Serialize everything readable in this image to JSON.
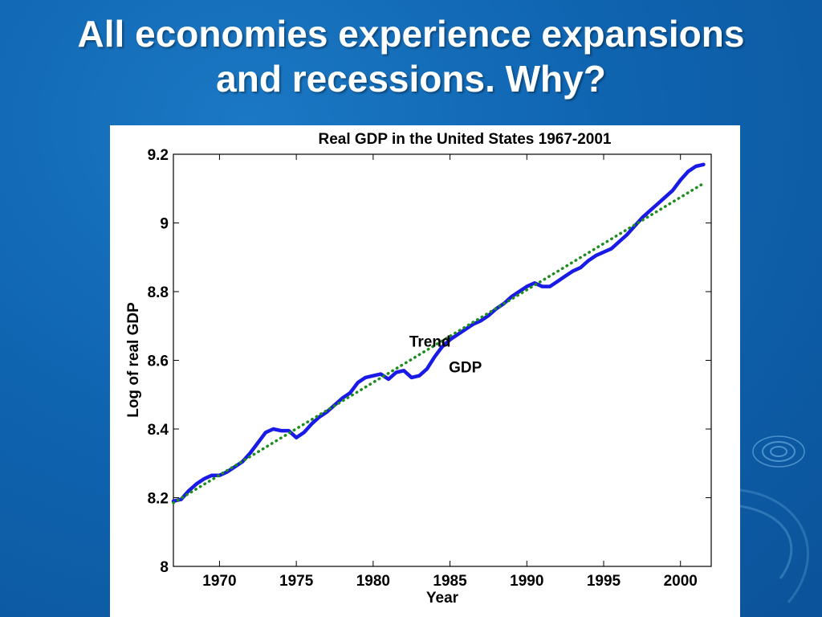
{
  "slide": {
    "title_line1": "All economies experience expansions",
    "title_line2": "and recessions. Why?"
  },
  "colors": {
    "background": "#0f64b0",
    "gdp_line": "#1a1ae6",
    "trend_line": "#1e8c1e"
  },
  "chart_data": {
    "type": "line",
    "title": "Real GDP in the United States 1967-2001",
    "xlabel": "Year",
    "ylabel": "Log of real GDP",
    "xlim": [
      1967,
      2002
    ],
    "ylim": [
      8.0,
      9.2
    ],
    "xticks": [
      1970,
      1975,
      1980,
      1985,
      1990,
      1995,
      2000
    ],
    "yticks": [
      8,
      8.2,
      8.4,
      8.6,
      8.8,
      9,
      9.2
    ],
    "ytick_labels": [
      "8",
      "8.2",
      "8.4",
      "8.6",
      "8.8",
      "9",
      "9.2"
    ],
    "grid": false,
    "annotations": [
      {
        "text": "Trend",
        "x": 1983.7,
        "y": 8.64
      },
      {
        "text": "GDP",
        "x": 1986.0,
        "y": 8.565
      }
    ],
    "series": [
      {
        "name": "GDP",
        "style": "solid",
        "x": [
          1967.0,
          1967.5,
          1968.0,
          1968.5,
          1969.0,
          1969.5,
          1970.0,
          1970.5,
          1971.0,
          1971.5,
          1972.0,
          1972.5,
          1973.0,
          1973.5,
          1974.0,
          1974.5,
          1975.0,
          1975.5,
          1976.0,
          1976.5,
          1977.0,
          1977.5,
          1978.0,
          1978.5,
          1979.0,
          1979.5,
          1980.0,
          1980.5,
          1981.0,
          1981.5,
          1982.0,
          1982.5,
          1983.0,
          1983.5,
          1984.0,
          1984.5,
          1985.0,
          1985.5,
          1986.0,
          1986.5,
          1987.0,
          1987.5,
          1988.0,
          1988.5,
          1989.0,
          1989.5,
          1990.0,
          1990.5,
          1991.0,
          1991.5,
          1992.0,
          1992.5,
          1993.0,
          1993.5,
          1994.0,
          1994.5,
          1995.0,
          1995.5,
          1996.0,
          1996.5,
          1997.0,
          1997.5,
          1998.0,
          1998.5,
          1999.0,
          1999.5,
          2000.0,
          2000.5,
          2001.0,
          2001.5
        ],
        "y": [
          8.19,
          8.195,
          8.22,
          8.24,
          8.255,
          8.265,
          8.265,
          8.275,
          8.29,
          8.305,
          8.33,
          8.36,
          8.39,
          8.4,
          8.395,
          8.395,
          8.375,
          8.39,
          8.415,
          8.435,
          8.45,
          8.47,
          8.49,
          8.505,
          8.535,
          8.55,
          8.555,
          8.56,
          8.545,
          8.565,
          8.57,
          8.55,
          8.555,
          8.575,
          8.61,
          8.64,
          8.66,
          8.675,
          8.69,
          8.705,
          8.715,
          8.73,
          8.75,
          8.765,
          8.785,
          8.8,
          8.815,
          8.825,
          8.815,
          8.815,
          8.83,
          8.845,
          8.86,
          8.87,
          8.89,
          8.905,
          8.915,
          8.925,
          8.945,
          8.965,
          8.99,
          9.015,
          9.035,
          9.055,
          9.075,
          9.095,
          9.125,
          9.15,
          9.165,
          9.17
        ]
      },
      {
        "name": "Trend",
        "style": "dotted",
        "x": [
          1967.0,
          2001.5
        ],
        "y": [
          8.185,
          9.115
        ]
      }
    ]
  }
}
